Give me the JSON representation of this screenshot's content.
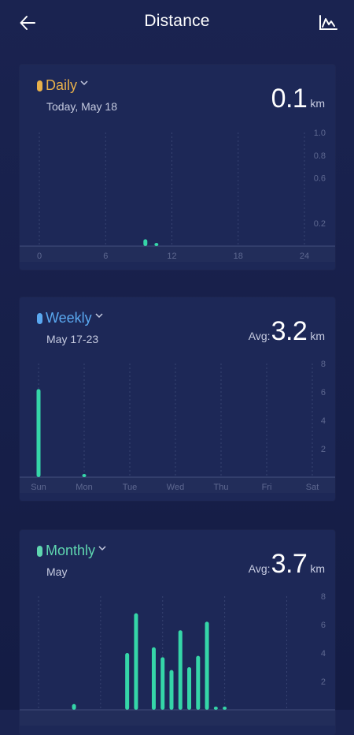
{
  "header": {
    "title": "Distance",
    "back_icon": "arrow-left-icon",
    "chart_icon": "line-chart-icon"
  },
  "colors": {
    "daily": "#e8b04a",
    "weekly": "#5aa8f0",
    "monthly": "#5fd6b0",
    "bar": "#35d6a8"
  },
  "daily": {
    "label": "Daily",
    "date": "Today, May 18",
    "avg_label": "",
    "value": "0.1",
    "unit": "km"
  },
  "weekly": {
    "label": "Weekly",
    "date": "May 17-23",
    "avg_label": "Avg:",
    "value": "3.2",
    "unit": "km"
  },
  "monthly": {
    "label": "Monthly",
    "date": "May",
    "avg_label": "Avg:",
    "value": "3.7",
    "unit": "km"
  },
  "chart_data": [
    {
      "type": "bar",
      "x_ticks": [
        "0",
        "6",
        "12",
        "18",
        "24"
      ],
      "y_ticks": [
        "1.0",
        "0.8",
        "0.6",
        "0.2"
      ],
      "ylim": [
        0,
        1.0
      ],
      "xlim": [
        0,
        24
      ],
      "points": [
        {
          "x": 9.6,
          "y": 0.06
        },
        {
          "x": 10.6,
          "y": 0.02
        }
      ]
    },
    {
      "type": "bar",
      "categories": [
        "Sun",
        "Mon",
        "Tue",
        "Wed",
        "Thu",
        "Fri",
        "Sat"
      ],
      "y_ticks": [
        "8",
        "6",
        "4",
        "2"
      ],
      "ylim": [
        0,
        8
      ],
      "values": [
        6.2,
        0.2,
        0,
        0,
        0,
        0,
        0
      ]
    },
    {
      "type": "bar",
      "y_ticks": [
        "8",
        "6",
        "4",
        "2"
      ],
      "ylim": [
        0,
        8
      ],
      "xlim": [
        1,
        31
      ],
      "x": [
        5,
        11,
        12,
        14,
        15,
        16,
        17,
        18,
        19,
        20,
        21,
        22
      ],
      "values": [
        0.4,
        4.0,
        6.8,
        4.4,
        3.7,
        2.8,
        5.6,
        3.0,
        3.8,
        6.2,
        0.2,
        0.1
      ]
    }
  ]
}
